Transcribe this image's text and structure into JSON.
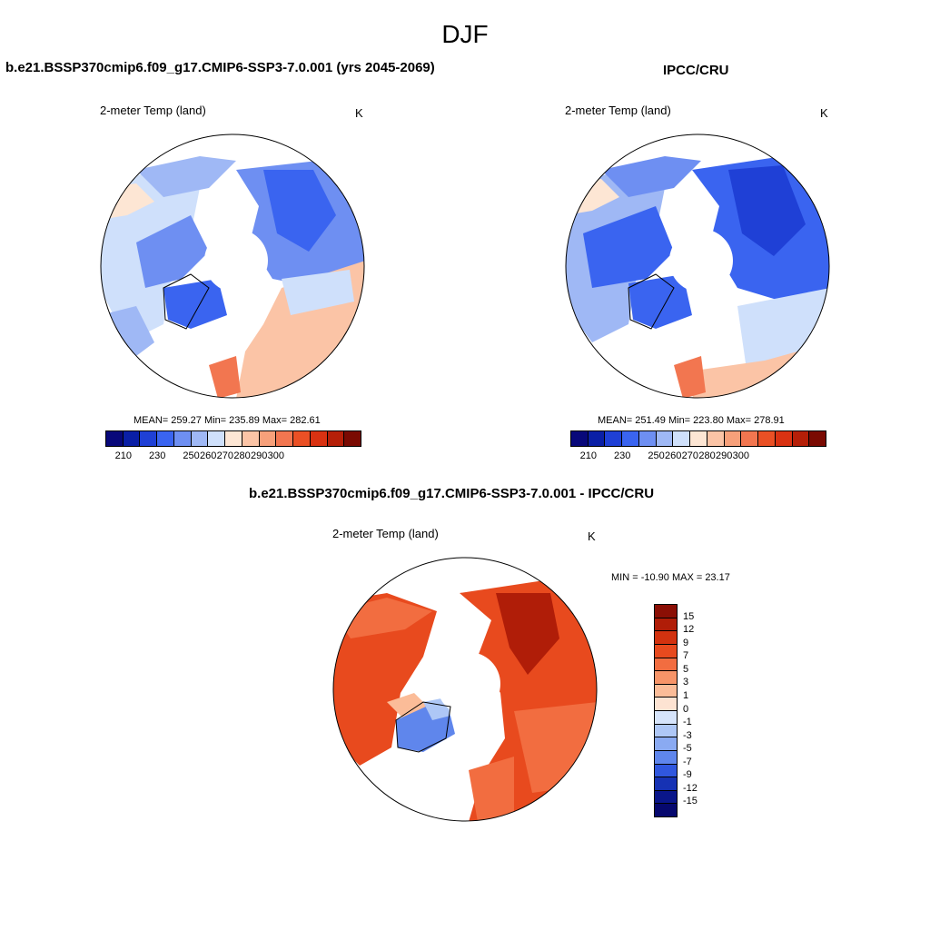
{
  "page": {
    "season": "DJF",
    "units": "K",
    "left_panel_title": "b.e21.BSSP370cmip6.f09_g17.CMIP6-SSP3-7.0.001 (yrs 2045-2069)",
    "right_panel_title": "IPCC/CRU",
    "diff_panel_title": "b.e21.BSSP370cmip6.f09_g17.CMIP6-SSP3-7.0.001 - IPCC/CRU",
    "variable": "2-meter Temp (land)"
  },
  "maps": {
    "model": {
      "mean": "259.27",
      "min": "235.89",
      "max": "282.61",
      "stats_text": "MEAN= 259.27  Min= 235.89  Max= 282.61"
    },
    "obs": {
      "mean": "251.49",
      "min": "223.80",
      "max": "278.91",
      "stats_text": "MEAN= 251.49  Min= 223.80  Max= 278.91"
    },
    "diff": {
      "min": "-10.90",
      "max": "23.17",
      "stats_text": "MIN = -10.90 MAX =  23.17"
    }
  },
  "colorbar_abs": {
    "labels": [
      "210",
      "230",
      "250",
      "260",
      "270",
      "280",
      "290",
      "300"
    ],
    "colors": [
      "#08087a",
      "#0a1fa6",
      "#1f40d6",
      "#3a64f0",
      "#6e8ff2",
      "#9fb8f5",
      "#cfe0fb",
      "#fde6d4",
      "#fbc4a6",
      "#f7a07a",
      "#f27650",
      "#ea5025",
      "#d93212",
      "#b51f08",
      "#7a0a02"
    ]
  },
  "colorbar_diff": {
    "labels": [
      "15",
      "12",
      "9",
      "7",
      "5",
      "3",
      "1",
      "0",
      "-1",
      "-3",
      "-5",
      "-7",
      "-9",
      "-12",
      "-15"
    ],
    "colors": [
      "#8b0f05",
      "#b01d08",
      "#d3320f",
      "#e84a1e",
      "#f26d40",
      "#f79468",
      "#fbbc98",
      "#fde3d2",
      "#d6e4fb",
      "#aec7f6",
      "#8aaaf2",
      "#5f86ec",
      "#3057de",
      "#1632b4",
      "#0a168a",
      "#06086e"
    ]
  }
}
